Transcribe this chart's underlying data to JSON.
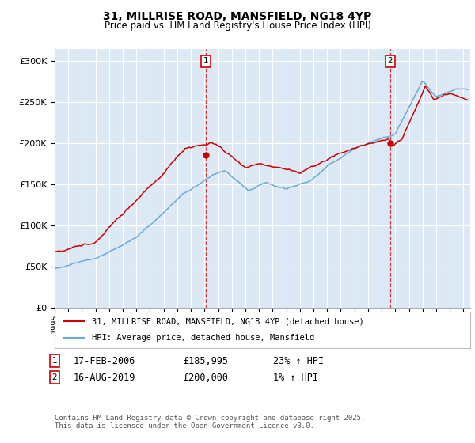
{
  "title_line1": "31, MILLRISE ROAD, MANSFIELD, NG18 4YP",
  "title_line2": "Price paid vs. HM Land Registry's House Price Index (HPI)",
  "ylabel_ticks": [
    "£0",
    "£50K",
    "£100K",
    "£150K",
    "£200K",
    "£250K",
    "£300K"
  ],
  "ylabel_values": [
    0,
    50000,
    100000,
    150000,
    200000,
    250000,
    300000
  ],
  "ylim": [
    0,
    315000
  ],
  "xlim_start": 1995.0,
  "xlim_end": 2025.5,
  "hpi_color": "#6aaad4",
  "price_color": "#cc0000",
  "bg_color": "#dce9f5",
  "marker1_date": 2006.12,
  "marker2_date": 2019.62,
  "marker1_price": 185995,
  "marker2_price": 200000,
  "legend_line1": "31, MILLRISE ROAD, MANSFIELD, NG18 4YP (detached house)",
  "legend_line2": "HPI: Average price, detached house, Mansfield",
  "annotation1_label": "1",
  "annotation1_date": "17-FEB-2006",
  "annotation1_price": "£185,995",
  "annotation1_hpi": "23% ↑ HPI",
  "annotation2_label": "2",
  "annotation2_date": "16-AUG-2019",
  "annotation2_price": "£200,000",
  "annotation2_hpi": "1% ↑ HPI",
  "footer": "Contains HM Land Registry data © Crown copyright and database right 2025.\nThis data is licensed under the Open Government Licence v3.0."
}
